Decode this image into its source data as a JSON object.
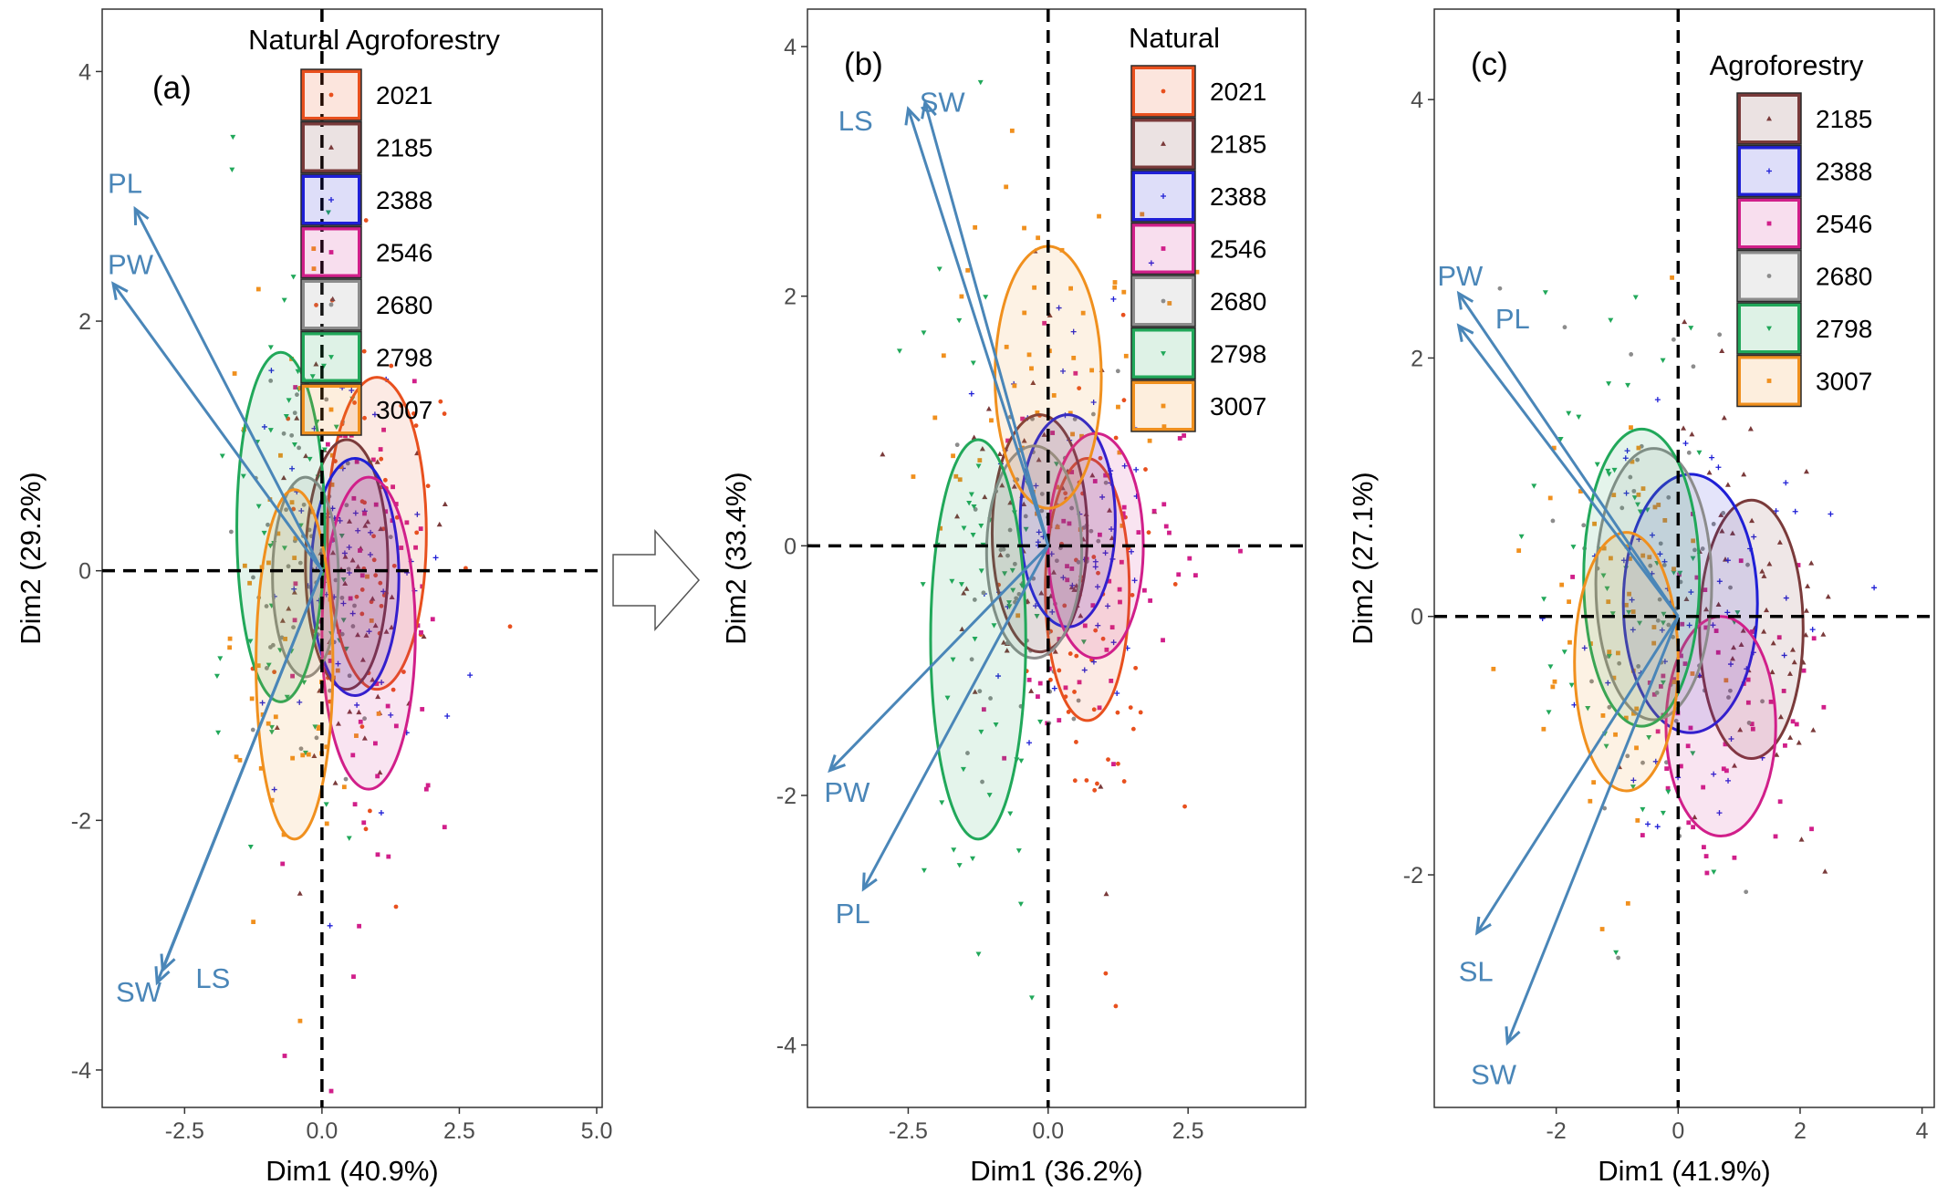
{
  "colors": {
    "2021": "#e8501e",
    "2185": "#7a3a3a",
    "2388": "#1f1fd6",
    "2546": "#d11f8a",
    "2680": "#8c8c8c",
    "2798": "#21a85a",
    "3007": "#f0901e",
    "arrow": "#4a86b8"
  },
  "transition_icon": "right-arrow-icon",
  "chart_data": [
    {
      "type": "scatter",
      "panel_label": "(a)",
      "legend_title": "Natural  Agroforestry",
      "xlabel": "Dim1 (40.9%)",
      "ylabel": "Dim2 (29.2%)",
      "xlim": [
        -4.0,
        5.1
      ],
      "ylim": [
        -4.3,
        4.5
      ],
      "xticks": [
        -2.5,
        0.0,
        2.5,
        5.0
      ],
      "xtick_labels": [
        "-2.5",
        "0.0",
        "2.5",
        "5.0"
      ],
      "yticks": [
        -4,
        -2,
        0,
        2,
        4
      ],
      "ytick_labels": [
        "-4",
        "-2",
        "0",
        "2",
        "4"
      ],
      "legend": [
        "2021",
        "2185",
        "2388",
        "2546",
        "2680",
        "2798",
        "3007"
      ],
      "ellipses": [
        {
          "group": "2021",
          "cx": 1.0,
          "cy": 0.3,
          "rx": 0.9,
          "ry": 1.25
        },
        {
          "group": "2185",
          "cx": 0.45,
          "cy": 0.05,
          "rx": 0.75,
          "ry": 1.0
        },
        {
          "group": "2388",
          "cx": 0.6,
          "cy": -0.05,
          "rx": 0.8,
          "ry": 0.95
        },
        {
          "group": "2546",
          "cx": 0.85,
          "cy": -0.5,
          "rx": 0.85,
          "ry": 1.25
        },
        {
          "group": "2680",
          "cx": -0.3,
          "cy": -0.05,
          "rx": 0.6,
          "ry": 0.8
        },
        {
          "group": "2798",
          "cx": -0.75,
          "cy": 0.35,
          "rx": 0.8,
          "ry": 1.4
        },
        {
          "group": "3007",
          "cx": -0.5,
          "cy": -0.75,
          "rx": 0.7,
          "ry": 1.4
        }
      ],
      "vectors": [
        {
          "label": "PL",
          "x": -3.4,
          "y": 2.9,
          "lx": -3.9,
          "ly": 3.1
        },
        {
          "label": "PW",
          "x": -3.8,
          "y": 2.3,
          "lx": -3.9,
          "ly": 2.45
        },
        {
          "label": "SW",
          "x": -3.0,
          "y": -3.3,
          "lx": -3.75,
          "ly": -3.38
        },
        {
          "label": "LS",
          "x": -2.9,
          "y": -3.2,
          "lx": -2.3,
          "ly": -3.27
        }
      ]
    },
    {
      "type": "scatter",
      "panel_label": "(b)",
      "legend_title": "Natural",
      "xlabel": "Dim1 (36.2%)",
      "ylabel": "Dim2 (33.4%)",
      "xlim": [
        -4.3,
        4.6
      ],
      "ylim": [
        -4.5,
        4.3
      ],
      "xticks": [
        -2.5,
        0.0,
        2.5
      ],
      "xtick_labels": [
        "-2.5",
        "0.0",
        "2.5"
      ],
      "yticks": [
        -4,
        -2,
        0,
        2,
        4
      ],
      "ytick_labels": [
        "-4",
        "-2",
        "0",
        "2",
        "4"
      ],
      "legend": [
        "2021",
        "2185",
        "2388",
        "2546",
        "2680",
        "2798",
        "3007"
      ],
      "ellipses": [
        {
          "group": "2021",
          "cx": 0.7,
          "cy": -0.35,
          "rx": 0.75,
          "ry": 1.05
        },
        {
          "group": "2185",
          "cx": -0.15,
          "cy": 0.1,
          "rx": 0.85,
          "ry": 0.95
        },
        {
          "group": "2388",
          "cx": 0.35,
          "cy": 0.2,
          "rx": 0.85,
          "ry": 0.85
        },
        {
          "group": "2546",
          "cx": 0.85,
          "cy": 0.0,
          "rx": 0.85,
          "ry": 0.9
        },
        {
          "group": "2680",
          "cx": -0.25,
          "cy": -0.05,
          "rx": 0.85,
          "ry": 0.85
        },
        {
          "group": "2798",
          "cx": -1.25,
          "cy": -0.75,
          "rx": 0.85,
          "ry": 1.6
        },
        {
          "group": "3007",
          "cx": 0.0,
          "cy": 1.35,
          "rx": 0.95,
          "ry": 1.05
        }
      ],
      "vectors": [
        {
          "label": "LS",
          "x": -2.5,
          "y": 3.5,
          "lx": -3.75,
          "ly": 3.4
        },
        {
          "label": "SW",
          "x": -2.2,
          "y": 3.55,
          "lx": -2.3,
          "ly": 3.55
        },
        {
          "label": "PW",
          "x": -3.9,
          "y": -1.8,
          "lx": -4.0,
          "ly": -1.98
        },
        {
          "label": "PL",
          "x": -3.3,
          "y": -2.75,
          "lx": -3.8,
          "ly": -2.95
        }
      ]
    },
    {
      "type": "scatter",
      "panel_label": "(c)",
      "legend_title": "Agroforestry",
      "xlabel": "Dim1 (41.9%)",
      "ylabel": "Dim2 (27.1%)",
      "xlim": [
        -4.0,
        4.2
      ],
      "ylim": [
        -3.8,
        4.7
      ],
      "xticks": [
        -2,
        0,
        2,
        4
      ],
      "xtick_labels": [
        "-2",
        "0",
        "2",
        "4"
      ],
      "yticks": [
        -2,
        0,
        2,
        4
      ],
      "ytick_labels": [
        "-2",
        "0",
        "2",
        "4"
      ],
      "legend": [
        "2185",
        "2388",
        "2546",
        "2680",
        "2798",
        "3007"
      ],
      "ellipses": [
        {
          "group": "2185",
          "cx": 1.2,
          "cy": -0.1,
          "rx": 0.85,
          "ry": 1.0
        },
        {
          "group": "2388",
          "cx": 0.2,
          "cy": 0.1,
          "rx": 1.1,
          "ry": 1.0
        },
        {
          "group": "2546",
          "cx": 0.7,
          "cy": -0.85,
          "rx": 0.9,
          "ry": 0.85
        },
        {
          "group": "2680",
          "cx": -0.4,
          "cy": 0.25,
          "rx": 0.95,
          "ry": 1.05
        },
        {
          "group": "2798",
          "cx": -0.6,
          "cy": 0.3,
          "rx": 0.95,
          "ry": 1.15
        },
        {
          "group": "3007",
          "cx": -0.85,
          "cy": -0.35,
          "rx": 0.85,
          "ry": 1.0
        }
      ],
      "vectors": [
        {
          "label": "PW",
          "x": -3.6,
          "y": 2.5,
          "lx": -3.95,
          "ly": 2.63
        },
        {
          "label": "PL",
          "x": -3.6,
          "y": 2.25,
          "lx": -3.0,
          "ly": 2.3
        },
        {
          "label": "SL",
          "x": -3.3,
          "y": -2.45,
          "lx": -3.6,
          "ly": -2.75
        },
        {
          "label": "SW",
          "x": -2.8,
          "y": -3.3,
          "lx": -3.4,
          "ly": -3.55
        }
      ]
    }
  ]
}
